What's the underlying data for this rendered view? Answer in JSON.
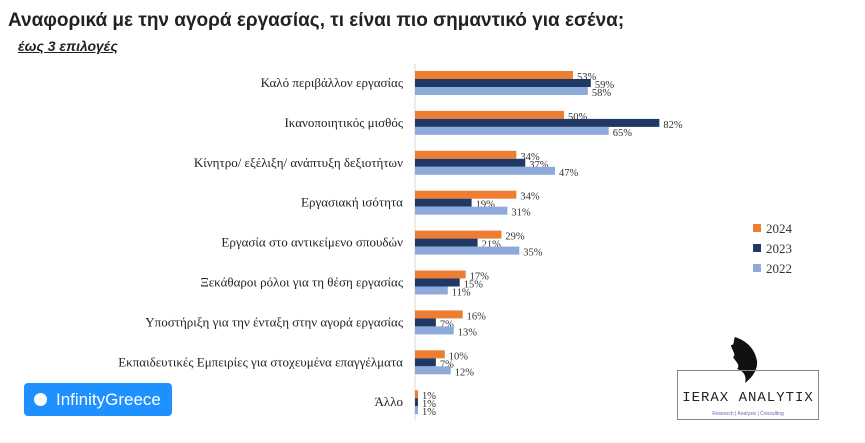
{
  "chart_data": {
    "type": "bar",
    "orientation": "horizontal",
    "title": "Αναφορικά με την αγορά εργασίας, τι είναι πιο σημαντικό για εσένα;",
    "subtitle": "έως 3 επιλογές",
    "categories": [
      "Καλό περιβάλλον εργασίας",
      "Ικανοποιητικός μισθός",
      "Κίνητρο/ εξέλιξη/ ανάπτυξη δεξιοτήτων",
      "Εργασιακή ισότητα",
      "Εργασία στο αντικείμενο σπουδών",
      "Ξεκάθαροι ρόλοι για τη θέση εργασίας",
      "Υποστήριξη για την ένταξη στην αγορά εργασίας",
      "Εκπαιδευτικές Εμπειρίες για στοχευμένα επαγγέλματα",
      "Άλλο"
    ],
    "series": [
      {
        "name": "2024",
        "color": "#ed7d31",
        "values": [
          53,
          50,
          34,
          34,
          29,
          17,
          16,
          10,
          1
        ]
      },
      {
        "name": "2023",
        "color": "#1f3864",
        "values": [
          59,
          82,
          37,
          19,
          21,
          15,
          7,
          7,
          1
        ]
      },
      {
        "name": "2022",
        "color": "#8eaadb",
        "values": [
          58,
          65,
          47,
          31,
          35,
          11,
          13,
          12,
          1
        ]
      }
    ],
    "unit": "%",
    "legend": "right",
    "grid": false
  },
  "logos": {
    "left": "InfinityGreece",
    "right": "IERAX ANALYTIX",
    "right_tagline": "Research | Analysis | Consulting"
  }
}
